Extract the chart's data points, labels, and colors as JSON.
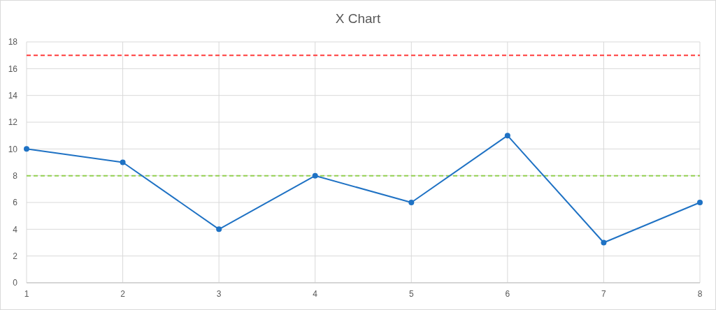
{
  "chart_data": {
    "type": "line",
    "title": "X Chart",
    "x": [
      1,
      2,
      3,
      4,
      5,
      6,
      7,
      8
    ],
    "series": [
      {
        "color": "#1f72c4",
        "values": [
          10,
          9,
          4,
          8,
          6,
          11,
          3,
          6
        ]
      }
    ],
    "xlim": [
      1,
      8
    ],
    "xticks": [
      1,
      2,
      3,
      4,
      5,
      6,
      7,
      8
    ],
    "ylim": [
      0,
      18
    ],
    "yticks": [
      0,
      2,
      4,
      6,
      8,
      10,
      12,
      14,
      16,
      18
    ],
    "grid": true,
    "marker": "circle",
    "line_style": "solid",
    "ref_lines": [
      {
        "axis": "y",
        "value": 17,
        "color": "#ff3b3b",
        "line_style": "dashed"
      },
      {
        "axis": "y",
        "value": 8,
        "color": "#92d050",
        "line_style": "dashed"
      }
    ]
  }
}
